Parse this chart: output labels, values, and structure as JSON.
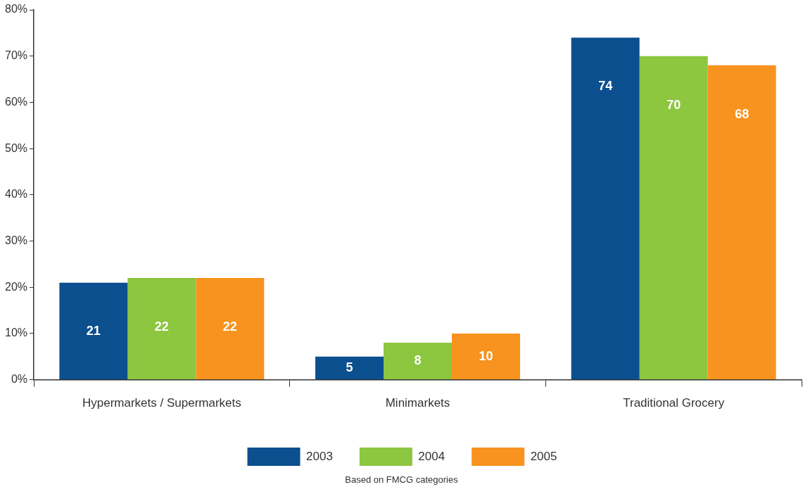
{
  "chart_data": {
    "type": "bar",
    "categories": [
      "Hypermarkets / Supermarkets",
      "Minimarkets",
      "Traditional Grocery"
    ],
    "series": [
      {
        "name": "2003",
        "color": "#0b4f8e",
        "values": [
          21,
          5,
          74
        ]
      },
      {
        "name": "2004",
        "color": "#8dc63f",
        "values": [
          22,
          8,
          70
        ]
      },
      {
        "name": "2005",
        "color": "#f7931e",
        "values": [
          22,
          10,
          68
        ]
      }
    ],
    "ylim": [
      0,
      80
    ],
    "yticks": [
      {
        "value": 0,
        "label": "0%"
      },
      {
        "value": 10,
        "label": "10%"
      },
      {
        "value": 20,
        "label": "20%"
      },
      {
        "value": 30,
        "label": "30%"
      },
      {
        "value": 40,
        "label": "40%"
      },
      {
        "value": 50,
        "label": "50%"
      },
      {
        "value": 60,
        "label": "60%"
      },
      {
        "value": 70,
        "label": "70%"
      },
      {
        "value": 80,
        "label": "80%"
      }
    ],
    "data_labels": true,
    "grid": false,
    "legend": "bottom",
    "annotations": [
      "Based on FMCG categories"
    ]
  }
}
